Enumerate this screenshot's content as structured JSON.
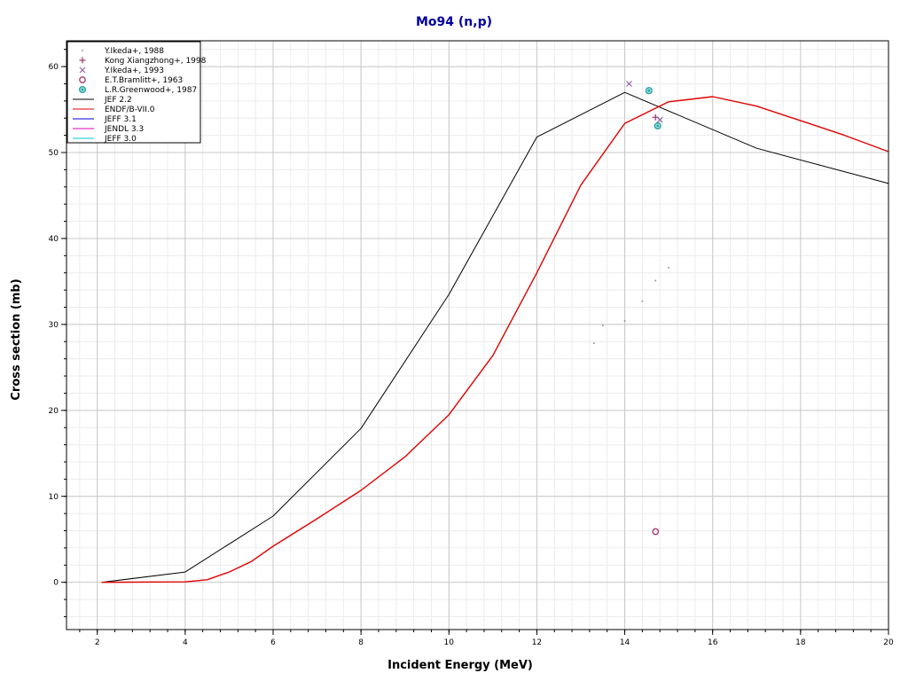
{
  "chart_data": {
    "type": "line",
    "title": "Mo94 (n,p)",
    "title_color": "#0000a0",
    "xlabel": "Incident Energy (MeV)",
    "ylabel": "Cross section (mb)",
    "xlim": [
      1.3,
      20
    ],
    "ylim": [
      -5.5,
      63
    ],
    "x_ticks": [
      2,
      4,
      6,
      8,
      10,
      12,
      14,
      16,
      18,
      20
    ],
    "x_tick_labels": [
      "2",
      "4",
      "6",
      "8",
      "10",
      "12",
      "14",
      "16",
      "18",
      "20"
    ],
    "y_ticks": [
      0,
      10,
      20,
      30,
      40,
      50,
      60
    ],
    "y_tick_labels": [
      "0",
      "10",
      "20",
      "30",
      "40",
      "50",
      "60"
    ],
    "grid": true,
    "legend_position": "top-left",
    "series": [
      {
        "name": "Y.Ikeda+, 1988",
        "kind": "scatter",
        "marker": "dot",
        "color": "#8a8a8a",
        "points": [
          [
            13.3,
            27.8
          ],
          [
            13.5,
            29.9
          ],
          [
            14.0,
            30.4
          ],
          [
            14.4,
            32.7
          ],
          [
            14.7,
            35.1
          ],
          [
            15.0,
            36.6
          ]
        ]
      },
      {
        "name": "Kong Xiangzhong+, 1998",
        "kind": "scatter",
        "marker": "plus",
        "color": "#a0306a",
        "points": [
          [
            14.7,
            54.1
          ]
        ]
      },
      {
        "name": "Y.Ikeda+, 1993",
        "kind": "scatter",
        "marker": "cross",
        "color": "#8a5aa8",
        "points": [
          [
            14.1,
            58.0
          ],
          [
            14.8,
            53.8
          ]
        ]
      },
      {
        "name": "E.T.Bramlitt+, 1963",
        "kind": "scatter",
        "marker": "circle",
        "color": "#b0306a",
        "points": [
          [
            14.7,
            5.9
          ]
        ]
      },
      {
        "name": "L.R.Greenwood+, 1987",
        "kind": "scatter",
        "marker": "ring",
        "color": "#20a0a0",
        "points": [
          [
            14.55,
            57.2
          ],
          [
            14.75,
            53.1
          ]
        ]
      },
      {
        "name": "JEF 2.2",
        "kind": "line",
        "color": "#000000",
        "points": [
          [
            2.1,
            0
          ],
          [
            4.0,
            1.2
          ],
          [
            6.0,
            7.7
          ],
          [
            8.0,
            17.9
          ],
          [
            10.0,
            33.5
          ],
          [
            12.0,
            51.8
          ],
          [
            14.0,
            57.0
          ],
          [
            17.0,
            50.5
          ],
          [
            20.0,
            46.4
          ]
        ]
      },
      {
        "name": "ENDF/B-VII.0",
        "kind": "line",
        "color": "#e00000",
        "points": [
          [
            2.1,
            0
          ],
          [
            4.0,
            0.05
          ],
          [
            4.5,
            0.3
          ],
          [
            5.0,
            1.2
          ],
          [
            5.5,
            2.4
          ],
          [
            6.0,
            4.2
          ],
          [
            7.0,
            7.4
          ],
          [
            8.0,
            10.7
          ],
          [
            9.0,
            14.6
          ],
          [
            10.0,
            19.5
          ],
          [
            11.0,
            26.4
          ],
          [
            12.0,
            36.0
          ],
          [
            13.0,
            46.2
          ],
          [
            14.0,
            53.4
          ],
          [
            15.0,
            55.9
          ],
          [
            16.0,
            56.5
          ],
          [
            17.0,
            55.4
          ],
          [
            18.0,
            53.7
          ],
          [
            19.0,
            52.0
          ],
          [
            20.0,
            50.1
          ]
        ]
      },
      {
        "name": "JEFF 3.1",
        "kind": "line",
        "color": "#0000e0",
        "points": []
      },
      {
        "name": "JENDL 3.3",
        "kind": "line",
        "color": "#e000c0",
        "points": []
      },
      {
        "name": "JEFF 3.0",
        "kind": "line",
        "color": "#00c8c8",
        "points": []
      }
    ]
  }
}
